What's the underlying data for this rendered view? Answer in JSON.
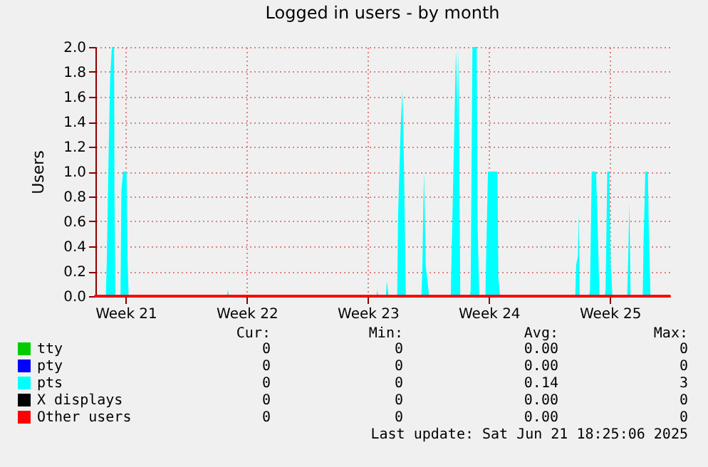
{
  "chart_data": {
    "type": "area",
    "title": "Logged in users - by month",
    "ylabel": "Users",
    "xlim": [
      "2025-05-19T13:36",
      "2025-06-21T18:24"
    ],
    "xticks": [
      {
        "value": "2025-05-21T07:36",
        "label": "Week 21"
      },
      {
        "value": "2025-05-28T07:36",
        "label": "Week 22"
      },
      {
        "value": "2025-06-04T07:36",
        "label": "Week 23"
      },
      {
        "value": "2025-06-11T07:36",
        "label": "Week 24"
      },
      {
        "value": "2025-06-18T07:36",
        "label": "Week 25"
      }
    ],
    "ylim": [
      0,
      2
    ],
    "yticks": [
      {
        "value": 0,
        "label": "0.0"
      },
      {
        "value": 0.2,
        "label": "0.2"
      },
      {
        "value": 0.4,
        "label": "0.4"
      },
      {
        "value": 0.6,
        "label": "0.6"
      },
      {
        "value": 0.8,
        "label": "0.8"
      },
      {
        "value": 1,
        "label": "1.0"
      },
      {
        "value": 1.2,
        "label": "1.2"
      },
      {
        "value": 1.4,
        "label": "1.4"
      },
      {
        "value": 1.6,
        "label": "1.6"
      },
      {
        "value": 1.8,
        "label": "1.8"
      },
      {
        "value": 2,
        "label": "2.0"
      }
    ],
    "grid": true,
    "legend": "bottom left",
    "series": [
      {
        "name": "tty",
        "type": "line",
        "color": "#00cc00"
      },
      {
        "name": "pty",
        "type": "line",
        "color": "#0000ff"
      },
      {
        "name": "pts",
        "color": "#00ffff",
        "x": [
          "2025-05-19T13:36",
          "2025-05-20T04:00",
          "2025-05-20T05:26",
          "2025-05-20T07:36",
          "2025-05-20T10:00",
          "2025-05-20T12:24",
          "2025-05-20T15:31",
          "2025-05-20T16:00",
          "2025-05-20T17:12",
          "2025-05-21T00:24",
          "2025-05-21T01:36",
          "2025-05-21T04:00",
          "2025-05-21T08:48",
          "2025-05-21T10:00",
          "2025-05-21T11:41",
          "2025-05-27T04:00",
          "2025-05-27T05:26",
          "2025-05-27T06:53",
          "2025-06-04T19:36",
          "2025-06-04T20:48",
          "2025-06-04T22:00",
          "2025-06-05T08:48",
          "2025-06-05T10:00",
          "2025-06-05T12:24",
          "2025-06-06T00:24",
          "2025-06-06T01:36",
          "2025-06-06T05:12",
          "2025-06-06T07:36",
          "2025-06-06T10:00",
          "2025-06-06T12:24",
          "2025-06-07T10:00",
          "2025-06-07T11:12",
          "2025-06-07T13:36",
          "2025-06-07T16:00",
          "2025-06-07T20:48",
          "2025-06-09T02:48",
          "2025-06-09T04:00",
          "2025-06-09T06:24",
          "2025-06-09T10:00",
          "2025-06-09T12:24",
          "2025-06-09T13:36",
          "2025-06-09T16:00",
          "2025-06-10T05:12",
          "2025-06-10T06:24",
          "2025-06-10T08:48",
          "2025-06-10T14:48",
          "2025-06-10T16:00",
          "2025-06-10T18:24",
          "2025-06-11T02:48",
          "2025-06-11T04:00",
          "2025-06-11T06:24",
          "2025-06-11T19:36",
          "2025-06-11T20:48",
          "2025-06-11T23:12",
          "2025-06-16T07:36",
          "2025-06-16T08:48",
          "2025-06-16T11:12",
          "2025-06-16T12:24",
          "2025-06-16T13:36",
          "2025-06-17T02:48",
          "2025-06-17T04:00",
          "2025-06-17T06:24",
          "2025-06-17T12:24",
          "2025-06-17T14:48",
          "2025-06-17T17:12",
          "2025-06-18T00:24",
          "2025-06-18T01:36",
          "2025-06-18T04:00",
          "2025-06-18T06:53",
          "2025-06-18T08:48",
          "2025-06-18T11:12",
          "2025-06-19T07:36",
          "2025-06-19T08:48",
          "2025-06-19T10:43",
          "2025-06-19T12:24",
          "2025-06-20T05:12",
          "2025-06-20T06:24",
          "2025-06-20T08:48",
          "2025-06-20T12:24",
          "2025-06-20T13:36",
          "2025-06-20T16:00",
          "2025-06-21T18:24"
        ],
        "values": [
          0,
          0,
          0.3,
          1.05,
          1.75,
          2.0,
          2.0,
          0.85,
          0,
          0,
          0.85,
          1.0,
          1.0,
          0.35,
          0,
          0,
          0.05,
          0,
          0,
          0.05,
          0,
          0,
          0.12,
          0,
          0,
          0.65,
          1.35,
          1.65,
          1.0,
          0,
          0,
          0.2,
          1.0,
          0.25,
          0,
          0,
          0.37,
          1.0,
          1.98,
          1.4,
          2.0,
          0,
          0,
          0.05,
          2.0,
          2.0,
          0.57,
          0,
          0,
          0.35,
          1.0,
          1.0,
          0.15,
          0,
          0,
          0.25,
          0.32,
          0.68,
          0,
          0,
          0.05,
          1.0,
          1.0,
          0.53,
          0,
          0,
          0.05,
          1.0,
          1.0,
          0.25,
          0,
          0,
          0.25,
          0.75,
          0,
          0,
          0.45,
          1.0,
          1.0,
          0.55,
          0,
          0
        ]
      },
      {
        "name": "X displays",
        "type": "line",
        "color": "#000000"
      },
      {
        "name": "Other users",
        "type": "line",
        "color": "#ff0000",
        "x": [
          "2025-05-19T13:36",
          "2025-06-21T18:24"
        ],
        "values": [
          0,
          0
        ]
      }
    ],
    "annotations": [
      "Cur:",
      "Min:",
      "Avg:",
      "Max:",
      "0",
      "0",
      "0.00",
      "0",
      "0",
      "0",
      "0.00",
      "0",
      "0",
      "0",
      "0.14",
      "3",
      "0",
      "0",
      "0.00",
      "0",
      "0",
      "0",
      "0.00",
      "0",
      "Last update: Sat Jun 21 18:25:06 2025"
    ]
  }
}
